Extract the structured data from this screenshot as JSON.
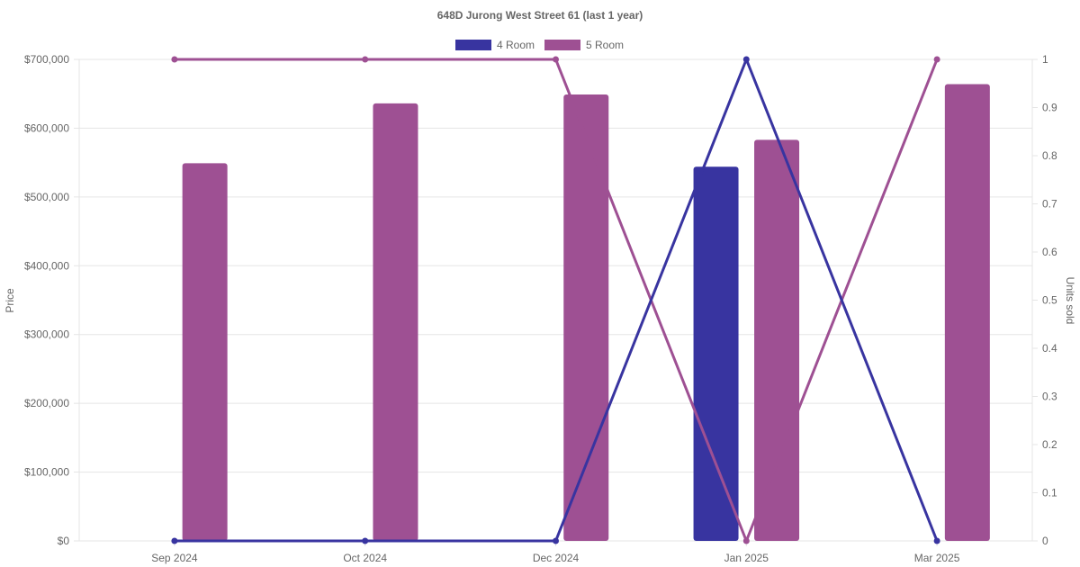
{
  "chart_data": {
    "type": "bar",
    "title": "648D Jurong West Street 61 (last 1 year)",
    "categories": [
      "Sep 2024",
      "Oct 2024",
      "Dec 2024",
      "Jan 2025",
      "Mar 2025"
    ],
    "y_left": {
      "label": "Price",
      "range": [
        0,
        700000
      ],
      "ticks": [
        0,
        100000,
        200000,
        300000,
        400000,
        500000,
        600000,
        700000
      ],
      "tick_labels": [
        "$0",
        "$100,000",
        "$200,000",
        "$300,000",
        "$400,000",
        "$500,000",
        "$600,000",
        "$700,000"
      ]
    },
    "y_right": {
      "label": "Units sold",
      "range": [
        0,
        1
      ],
      "ticks": [
        0,
        0.1,
        0.2,
        0.3,
        0.4,
        0.5,
        0.6,
        0.7,
        0.8,
        0.9,
        1
      ],
      "tick_labels": [
        "0",
        "0.1",
        "0.2",
        "0.3",
        "0.4",
        "0.5",
        "0.6",
        "0.7",
        "0.8",
        "0.9",
        "1"
      ]
    },
    "grid": true,
    "legend_position": "top-center",
    "bar_series": [
      {
        "name": "4 Room",
        "color": "#3834a0",
        "values": [
          null,
          null,
          null,
          544000,
          null
        ]
      },
      {
        "name": "5 Room",
        "color": "#9e5093",
        "values": [
          549000,
          636000,
          649000,
          583000,
          664000
        ]
      }
    ],
    "line_series": [
      {
        "name": "4 Room",
        "color": "#3834a0",
        "axis": "right",
        "values": [
          0,
          0,
          0,
          1,
          0
        ]
      },
      {
        "name": "5 Room",
        "color": "#9e5093",
        "axis": "right",
        "values": [
          1,
          1,
          1,
          0,
          1
        ]
      }
    ]
  }
}
